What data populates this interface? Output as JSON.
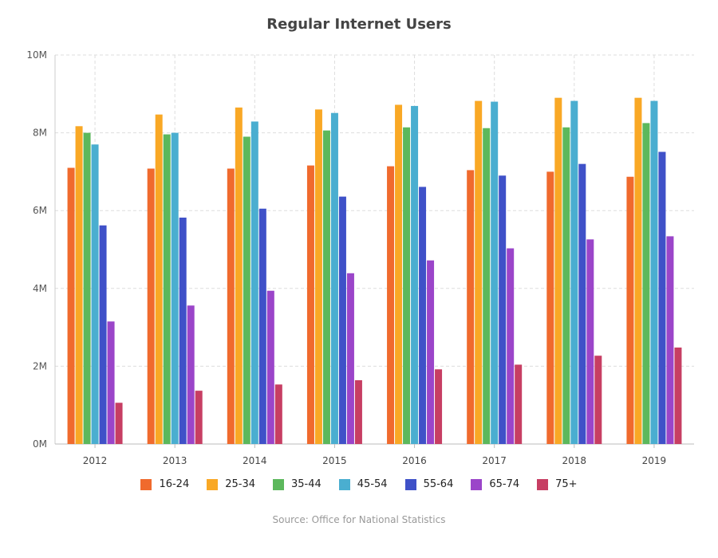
{
  "chart_data": {
    "type": "bar",
    "title": "Regular Internet Users",
    "source": "Source: Office for National Statistics",
    "categories": [
      "2012",
      "2013",
      "2014",
      "2015",
      "2016",
      "2017",
      "2018",
      "2019"
    ],
    "ylim": [
      0,
      10000000
    ],
    "yticks": [
      {
        "value": 0,
        "label": "0M"
      },
      {
        "value": 2000000,
        "label": "2M"
      },
      {
        "value": 4000000,
        "label": "4M"
      },
      {
        "value": 6000000,
        "label": "6M"
      },
      {
        "value": 8000000,
        "label": "8M"
      },
      {
        "value": 10000000,
        "label": "10M"
      }
    ],
    "grid": true,
    "legend_position": "bottom",
    "series": [
      {
        "name": "16-24",
        "color": "#f06a2d",
        "values": [
          7100000,
          7080000,
          7080000,
          7160000,
          7140000,
          7040000,
          7000000,
          6870000
        ]
      },
      {
        "name": "25-34",
        "color": "#f9a825",
        "values": [
          8170000,
          8470000,
          8650000,
          8600000,
          8720000,
          8820000,
          8900000,
          8900000
        ]
      },
      {
        "name": "35-44",
        "color": "#5cb85c",
        "values": [
          8000000,
          7960000,
          7900000,
          8060000,
          8140000,
          8120000,
          8140000,
          8250000
        ]
      },
      {
        "name": "45-54",
        "color": "#4aaed0",
        "values": [
          7700000,
          8000000,
          8290000,
          8510000,
          8690000,
          8800000,
          8820000,
          8820000
        ]
      },
      {
        "name": "55-64",
        "color": "#3f51c8",
        "values": [
          5620000,
          5820000,
          6050000,
          6360000,
          6610000,
          6900000,
          7200000,
          7510000
        ]
      },
      {
        "name": "65-74",
        "color": "#9b45c9",
        "values": [
          3150000,
          3560000,
          3940000,
          4390000,
          4720000,
          5030000,
          5260000,
          5340000
        ]
      },
      {
        "name": "75+",
        "color": "#c73e63",
        "values": [
          1060000,
          1370000,
          1530000,
          1640000,
          1920000,
          2040000,
          2270000,
          2480000
        ]
      }
    ]
  }
}
